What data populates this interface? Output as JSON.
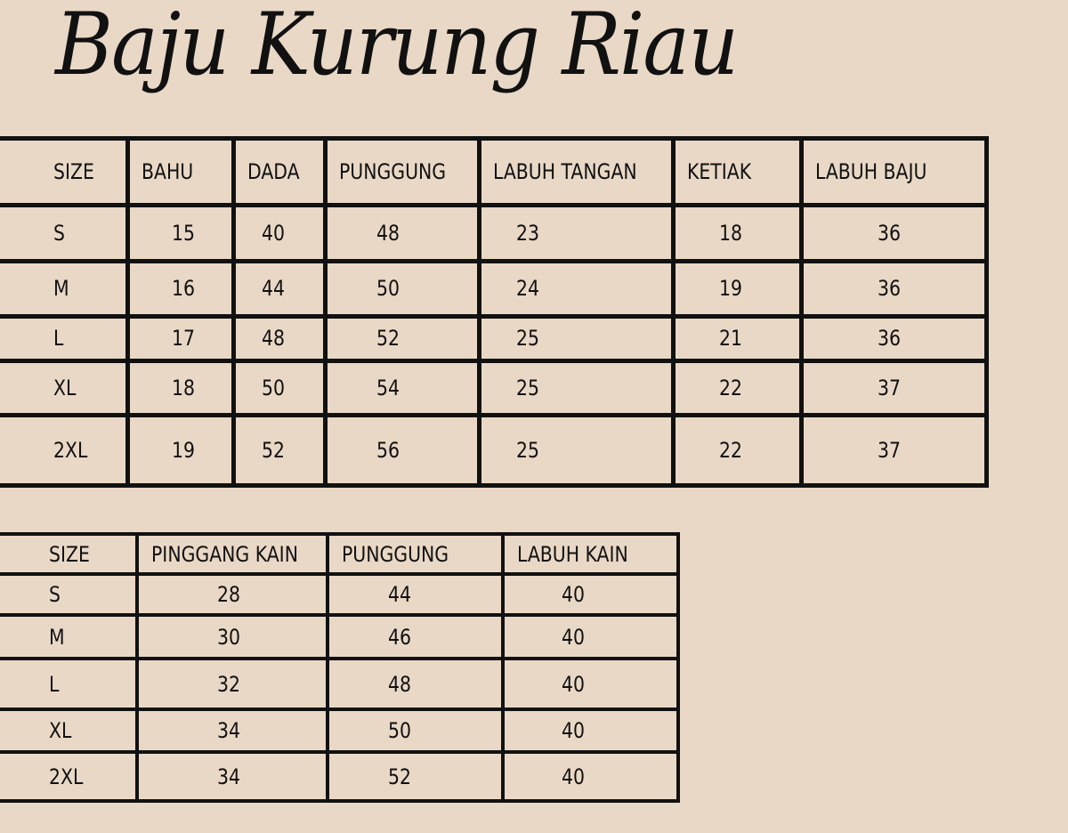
{
  "title": "Baju Kurung Riau",
  "baju_table": {
    "headers": [
      "SIZE",
      "BAHU",
      "DADA",
      "PUNGGUNG",
      "LABUH TANGAN",
      "KETIAK",
      "LABUH BAJU"
    ],
    "rows": [
      [
        "S",
        "15",
        "40",
        "48",
        "23",
        "18",
        "36"
      ],
      [
        "M",
        "16",
        "44",
        "50",
        "24",
        "19",
        "36"
      ],
      [
        "L",
        "17",
        "48",
        "52",
        "25",
        "21",
        "36"
      ],
      [
        "XL",
        "18",
        "50",
        "54",
        "25",
        "22",
        "37"
      ],
      [
        "2XL",
        "19",
        "52",
        "56",
        "25",
        "22",
        "37"
      ]
    ]
  },
  "kain_table": {
    "headers": [
      "SIZE",
      "PINGGANG KAIN",
      "PUNGGUNG",
      "LABUH KAIN"
    ],
    "rows": [
      [
        "S",
        "28",
        "44",
        "40"
      ],
      [
        "M",
        "30",
        "46",
        "40"
      ],
      [
        "L",
        "32",
        "48",
        "40"
      ],
      [
        "XL",
        "34",
        "50",
        "40"
      ],
      [
        "2XL",
        "34",
        "52",
        "40"
      ]
    ]
  },
  "colors": {
    "background": "#e9d8c6",
    "lines": "#111111"
  }
}
